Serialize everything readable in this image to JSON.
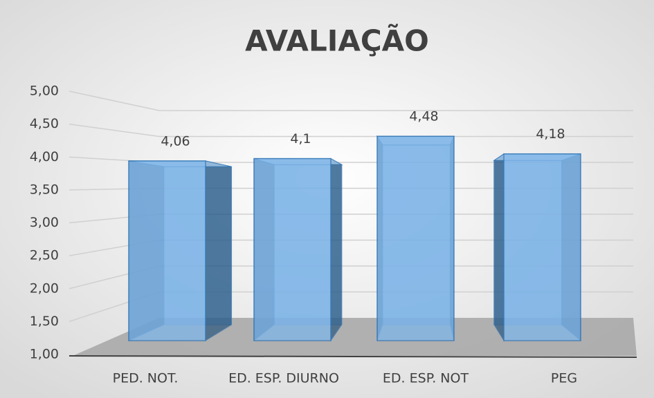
{
  "chart_data": {
    "type": "bar3d",
    "title": "AVALIAÇÃO",
    "categories": [
      "PED. NOT.",
      "ED. ESP. DIURNO",
      "ED. ESP. NOT",
      "PEG"
    ],
    "values": [
      4.06,
      4.1,
      4.48,
      4.18
    ],
    "value_labels": [
      "4,06",
      "4,1",
      "4,48",
      "4,18"
    ],
    "color": "#5b9bd5",
    "ylim": [
      1,
      5
    ],
    "yticks": [
      {
        "value": 1,
        "label": "1,00"
      },
      {
        "value": 1.5,
        "label": "1,50"
      },
      {
        "value": 2,
        "label": "2,00"
      },
      {
        "value": 2.5,
        "label": "2,50"
      },
      {
        "value": 3,
        "label": "3,00"
      },
      {
        "value": 3.5,
        "label": "3,50"
      },
      {
        "value": 4,
        "label": "4,00"
      },
      {
        "value": 4.5,
        "label": "4,50"
      },
      {
        "value": 5,
        "label": "5,00"
      }
    ],
    "grid": true
  }
}
